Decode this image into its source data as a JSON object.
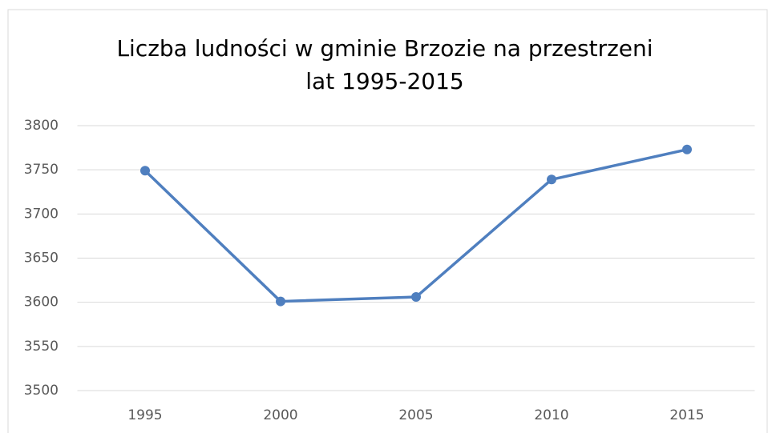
{
  "chart_data": {
    "type": "line",
    "title": [
      "Liczba ludności w gminie Brzozie na przestrzeni",
      "lat 1995-2015"
    ],
    "categories": [
      "1995",
      "2000",
      "2005",
      "2010",
      "2015"
    ],
    "series": [
      {
        "name": "Liczba ludności",
        "color": "#4f7fbf",
        "values": [
          3749,
          3601,
          3606,
          3739,
          3773
        ]
      }
    ],
    "ylim": [
      3500,
      3800
    ],
    "yticks": [
      3500,
      3550,
      3600,
      3650,
      3700,
      3750,
      3800
    ],
    "grid": true
  }
}
